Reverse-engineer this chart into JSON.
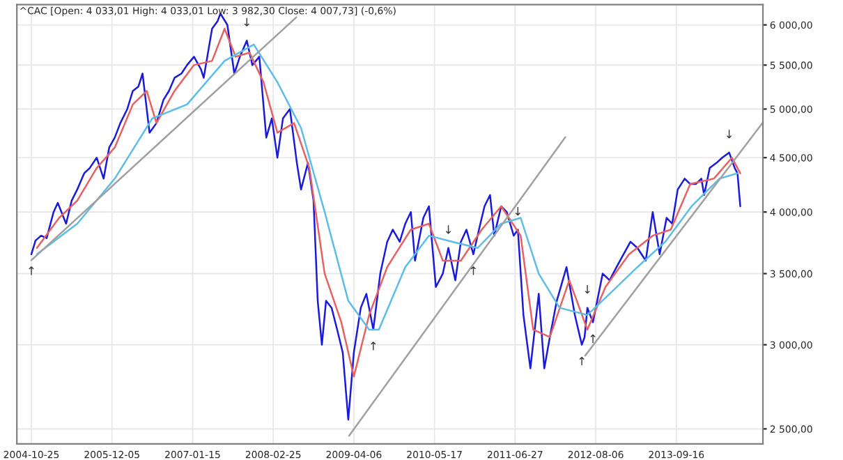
{
  "chart_data": {
    "type": "line",
    "title": "^CAC [Open: 4 033,01 High: 4 033,01 Low: 3 982,30 Close: 4 007,73] (-0,6%)",
    "log": true,
    "grid": true,
    "line_style": "solid",
    "xlim": [
      "2004-08-13",
      "2014-11-26"
    ],
    "xticks": [
      {
        "value": "2004-10-25",
        "label": "2004-10-25"
      },
      {
        "value": "2005-12-05",
        "label": "2005-12-05"
      },
      {
        "value": "2007-01-15",
        "label": "2007-01-15"
      },
      {
        "value": "2008-02-25",
        "label": "2008-02-25"
      },
      {
        "value": "2009-04-06",
        "label": "2009-04-06"
      },
      {
        "value": "2010-05-17",
        "label": "2010-05-17"
      },
      {
        "value": "2011-06-27",
        "label": "2011-06-27"
      },
      {
        "value": "2012-08-06",
        "label": "2012-08-06"
      },
      {
        "value": "2013-09-16",
        "label": "2013-09-16"
      }
    ],
    "ylim": [
      2420,
      6270
    ],
    "yticks": [
      {
        "value": 2500,
        "label": "2 500,00"
      },
      {
        "value": 3000,
        "label": "3 000,00"
      },
      {
        "value": 3500,
        "label": "3 500,00"
      },
      {
        "value": 4000,
        "label": "4 000,00"
      },
      {
        "value": 4500,
        "label": "4 500,00"
      },
      {
        "value": 5000,
        "label": "5 000,00"
      },
      {
        "value": 5500,
        "label": "5 500,00"
      },
      {
        "value": 6000,
        "label": "6 000,00"
      }
    ],
    "series": [
      {
        "color": "#1a1adc",
        "x": [
          "2004-10-25",
          "2004-11-15",
          "2004-12-13",
          "2005-01-10",
          "2005-02-14",
          "2005-03-07",
          "2005-04-18",
          "2005-05-16",
          "2005-06-13",
          "2005-07-18",
          "2005-08-15",
          "2005-09-19",
          "2005-10-24",
          "2005-11-21",
          "2005-12-19",
          "2006-01-16",
          "2006-02-20",
          "2006-03-20",
          "2006-04-17",
          "2006-05-08",
          "2006-06-12",
          "2006-07-17",
          "2006-08-21",
          "2006-09-18",
          "2006-10-16",
          "2006-11-20",
          "2006-12-18",
          "2007-01-22",
          "2007-02-26",
          "2007-03-12",
          "2007-04-23",
          "2007-05-21",
          "2007-06-04",
          "2007-07-09",
          "2007-08-13",
          "2007-09-10",
          "2007-10-15",
          "2007-11-12",
          "2007-12-17",
          "2008-01-21",
          "2008-02-18",
          "2008-03-17",
          "2008-04-14",
          "2008-05-19",
          "2008-06-23",
          "2008-07-14",
          "2008-08-18",
          "2008-09-15",
          "2008-10-06",
          "2008-10-27",
          "2008-11-17",
          "2008-12-15",
          "2009-01-12",
          "2009-02-09",
          "2009-03-09",
          "2009-04-06",
          "2009-05-11",
          "2009-06-08",
          "2009-07-13",
          "2009-08-17",
          "2009-09-21",
          "2009-10-19",
          "2009-11-23",
          "2009-12-21",
          "2010-01-18",
          "2010-02-08",
          "2010-03-22",
          "2010-04-19",
          "2010-05-24",
          "2010-06-28",
          "2010-07-26",
          "2010-08-30",
          "2010-09-27",
          "2010-10-25",
          "2010-11-29",
          "2010-12-27",
          "2011-01-24",
          "2011-02-21",
          "2011-03-14",
          "2011-04-18",
          "2011-05-16",
          "2011-06-20",
          "2011-07-11",
          "2011-08-08",
          "2011-09-12",
          "2011-10-24",
          "2011-11-21",
          "2011-12-19",
          "2012-01-23",
          "2012-03-12",
          "2012-04-23",
          "2012-05-28",
          "2012-06-11",
          "2012-06-25",
          "2012-07-23",
          "2012-09-10",
          "2012-10-15",
          "2012-11-19",
          "2012-12-24",
          "2013-01-28",
          "2013-03-04",
          "2013-04-15",
          "2013-05-20",
          "2013-06-24",
          "2013-07-29",
          "2013-08-26",
          "2013-09-23",
          "2013-10-28",
          "2013-11-25",
          "2013-12-23",
          "2014-01-20",
          "2014-02-03",
          "2014-03-03",
          "2014-04-07",
          "2014-05-05",
          "2014-06-09",
          "2014-07-07",
          "2014-07-21",
          "2014-08-04"
        ],
        "values": [
          3650,
          3760,
          3800,
          3780,
          4000,
          4080,
          3900,
          4100,
          4200,
          4350,
          4400,
          4500,
          4300,
          4600,
          4700,
          4850,
          5000,
          5200,
          5250,
          5400,
          4750,
          4850,
          5100,
          5200,
          5350,
          5400,
          5500,
          5600,
          5450,
          5350,
          5950,
          6050,
          6150,
          6000,
          5400,
          5600,
          5800,
          5500,
          5600,
          4700,
          4900,
          4500,
          4900,
          5000,
          4450,
          4200,
          4450,
          4100,
          3300,
          3000,
          3300,
          3250,
          3100,
          2950,
          2550,
          2950,
          3250,
          3350,
          3100,
          3500,
          3750,
          3850,
          3750,
          3900,
          4000,
          3600,
          3950,
          4050,
          3400,
          3500,
          3700,
          3450,
          3750,
          3850,
          3650,
          3850,
          4050,
          4150,
          3800,
          4050,
          4000,
          3800,
          3850,
          3200,
          2850,
          3350,
          2850,
          3050,
          3300,
          3550,
          3200,
          3000,
          3050,
          3250,
          3150,
          3500,
          3450,
          3550,
          3650,
          3750,
          3700,
          3600,
          4000,
          3650,
          3950,
          3900,
          4200,
          4300,
          4250,
          4250,
          4300,
          4150,
          4400,
          4450,
          4500,
          4550,
          4400,
          4350,
          4050
        ]
      },
      {
        "color": "#e86060",
        "x": [
          "2004-11-22",
          "2005-03-14",
          "2005-06-13",
          "2005-09-19",
          "2005-12-19",
          "2006-03-20",
          "2006-05-29",
          "2006-07-17",
          "2006-10-16",
          "2007-01-22",
          "2007-04-23",
          "2007-06-25",
          "2007-08-20",
          "2007-10-29",
          "2008-01-07",
          "2008-03-17",
          "2008-06-09",
          "2008-08-25",
          "2008-11-10",
          "2009-02-02",
          "2009-04-06",
          "2009-06-22",
          "2009-09-21",
          "2010-01-18",
          "2010-04-19",
          "2010-06-28",
          "2010-09-27",
          "2011-01-10",
          "2011-04-18",
          "2011-07-25",
          "2011-09-26",
          "2011-12-19",
          "2012-03-26",
          "2012-06-25",
          "2012-09-24",
          "2013-01-21",
          "2013-05-20",
          "2013-08-19",
          "2013-11-25",
          "2014-03-24",
          "2014-06-23",
          "2014-08-04"
        ],
        "values": [
          3700,
          3950,
          4100,
          4400,
          4600,
          5050,
          5200,
          4850,
          5200,
          5500,
          5550,
          5950,
          5600,
          5650,
          5300,
          4750,
          4850,
          4400,
          3500,
          3150,
          2800,
          3200,
          3550,
          3850,
          3900,
          3600,
          3600,
          3850,
          4050,
          3800,
          3100,
          3050,
          3450,
          3100,
          3400,
          3650,
          3800,
          3850,
          4250,
          4300,
          4500,
          4350
        ]
      },
      {
        "color": "#5bbde8",
        "x": [
          "2004-11-22",
          "2005-06-13",
          "2005-12-19",
          "2006-06-26",
          "2006-12-18",
          "2007-06-25",
          "2007-11-19",
          "2008-03-17",
          "2008-07-14",
          "2008-11-10",
          "2009-03-09",
          "2009-06-22",
          "2009-08-10",
          "2009-12-21",
          "2010-04-19",
          "2010-08-16",
          "2010-12-20",
          "2011-04-18",
          "2011-07-25",
          "2011-10-24",
          "2012-02-06",
          "2012-06-25",
          "2012-10-15",
          "2013-03-04",
          "2013-07-22",
          "2013-12-02",
          "2014-04-21",
          "2014-07-21"
        ],
        "values": [
          3650,
          3900,
          4300,
          4900,
          5050,
          5550,
          5750,
          5300,
          4800,
          4000,
          3300,
          3100,
          3100,
          3550,
          3800,
          3750,
          3700,
          3900,
          3950,
          3500,
          3250,
          3200,
          3350,
          3550,
          3750,
          4050,
          4300,
          4350
        ]
      },
      {
        "color": "#a0a0a0",
        "x": [
          "2004-10-25",
          "2008-06-20"
        ],
        "values": [
          3603,
          6100
        ]
      },
      {
        "color": "#a0a0a0",
        "x": [
          "2009-03-13",
          "2012-03-06"
        ],
        "values": [
          2463,
          4704
        ]
      },
      {
        "color": "#a0a0a0",
        "x": [
          "2012-06-14",
          "2014-11-26"
        ],
        "values": [
          2930,
          4856
        ]
      }
    ],
    "annotations": [
      {
        "text": "↑",
        "x": "2004-10-25",
        "y": 3650
      },
      {
        "text": "↓",
        "x": "2007-10-15",
        "y": 5800
      },
      {
        "text": "↑",
        "x": "2009-07-13",
        "y": 3100
      },
      {
        "text": "↓",
        "x": "2010-07-26",
        "y": 3700
      },
      {
        "text": "↑",
        "x": "2010-11-29",
        "y": 3650
      },
      {
        "text": "↓",
        "x": "2011-07-11",
        "y": 3850
      },
      {
        "text": "↑",
        "x": "2012-05-28",
        "y": 3000
      },
      {
        "text": "↓",
        "x": "2012-06-25",
        "y": 3250
      },
      {
        "text": "↑",
        "x": "2012-07-23",
        "y": 3150
      },
      {
        "text": "↓",
        "x": "2014-06-09",
        "y": 4550
      }
    ]
  }
}
